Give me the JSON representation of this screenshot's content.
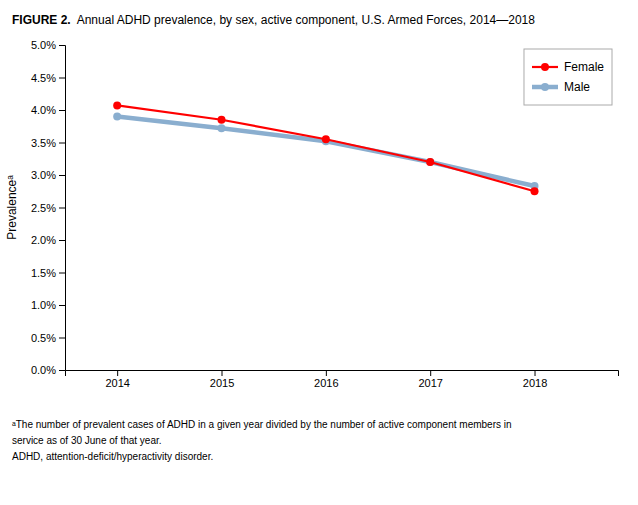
{
  "chart_data": {
    "type": "line",
    "title": "FIGURE 2.",
    "subtitle": "Annual ADHD prevalence, by sex, active component, U.S. Armed Forces, 2014—2018",
    "y_label": "Prevalenceᵃ",
    "x": [
      2014,
      2015,
      2016,
      2017,
      2018
    ],
    "series": [
      {
        "name": "Female",
        "color": "#FF0000",
        "marker": "circle",
        "values": [
          0.0407,
          0.0385,
          0.0355,
          0.032,
          0.0275
        ]
      },
      {
        "name": "Male",
        "color": "#8aaecf",
        "marker": "circle",
        "values": [
          0.039,
          0.0372,
          0.0352,
          0.032,
          0.0283
        ]
      }
    ],
    "xlim": [
      2013.5,
      2018.8
    ],
    "xticks": [
      2014,
      2015,
      2016,
      2017,
      2018
    ],
    "ylim": [
      0.0,
      0.05
    ],
    "yticks": [
      {
        "value": 0.0,
        "label": "0.0%"
      },
      {
        "value": 0.005,
        "label": "0.5%"
      },
      {
        "value": 0.01,
        "label": "1.0%"
      },
      {
        "value": 0.015,
        "label": "1.5%"
      },
      {
        "value": 0.02,
        "label": "2.0%"
      },
      {
        "value": 0.025,
        "label": "2.5%"
      },
      {
        "value": 0.03,
        "label": "3.0%"
      },
      {
        "value": 0.035,
        "label": "3.5%"
      },
      {
        "value": 0.04,
        "label": "4.0%"
      },
      {
        "value": 0.045,
        "label": "4.5%"
      },
      {
        "value": 0.05,
        "label": "5.0%"
      }
    ],
    "grid": false,
    "legend": "upper right",
    "annotations": [
      "ᵃThe number of prevalent cases of ADHD in a given year divided by the number of active component members in",
      "service as of 30 June of that year.",
      "ADHD, attention-deficit/hyperactivity disorder."
    ]
  }
}
